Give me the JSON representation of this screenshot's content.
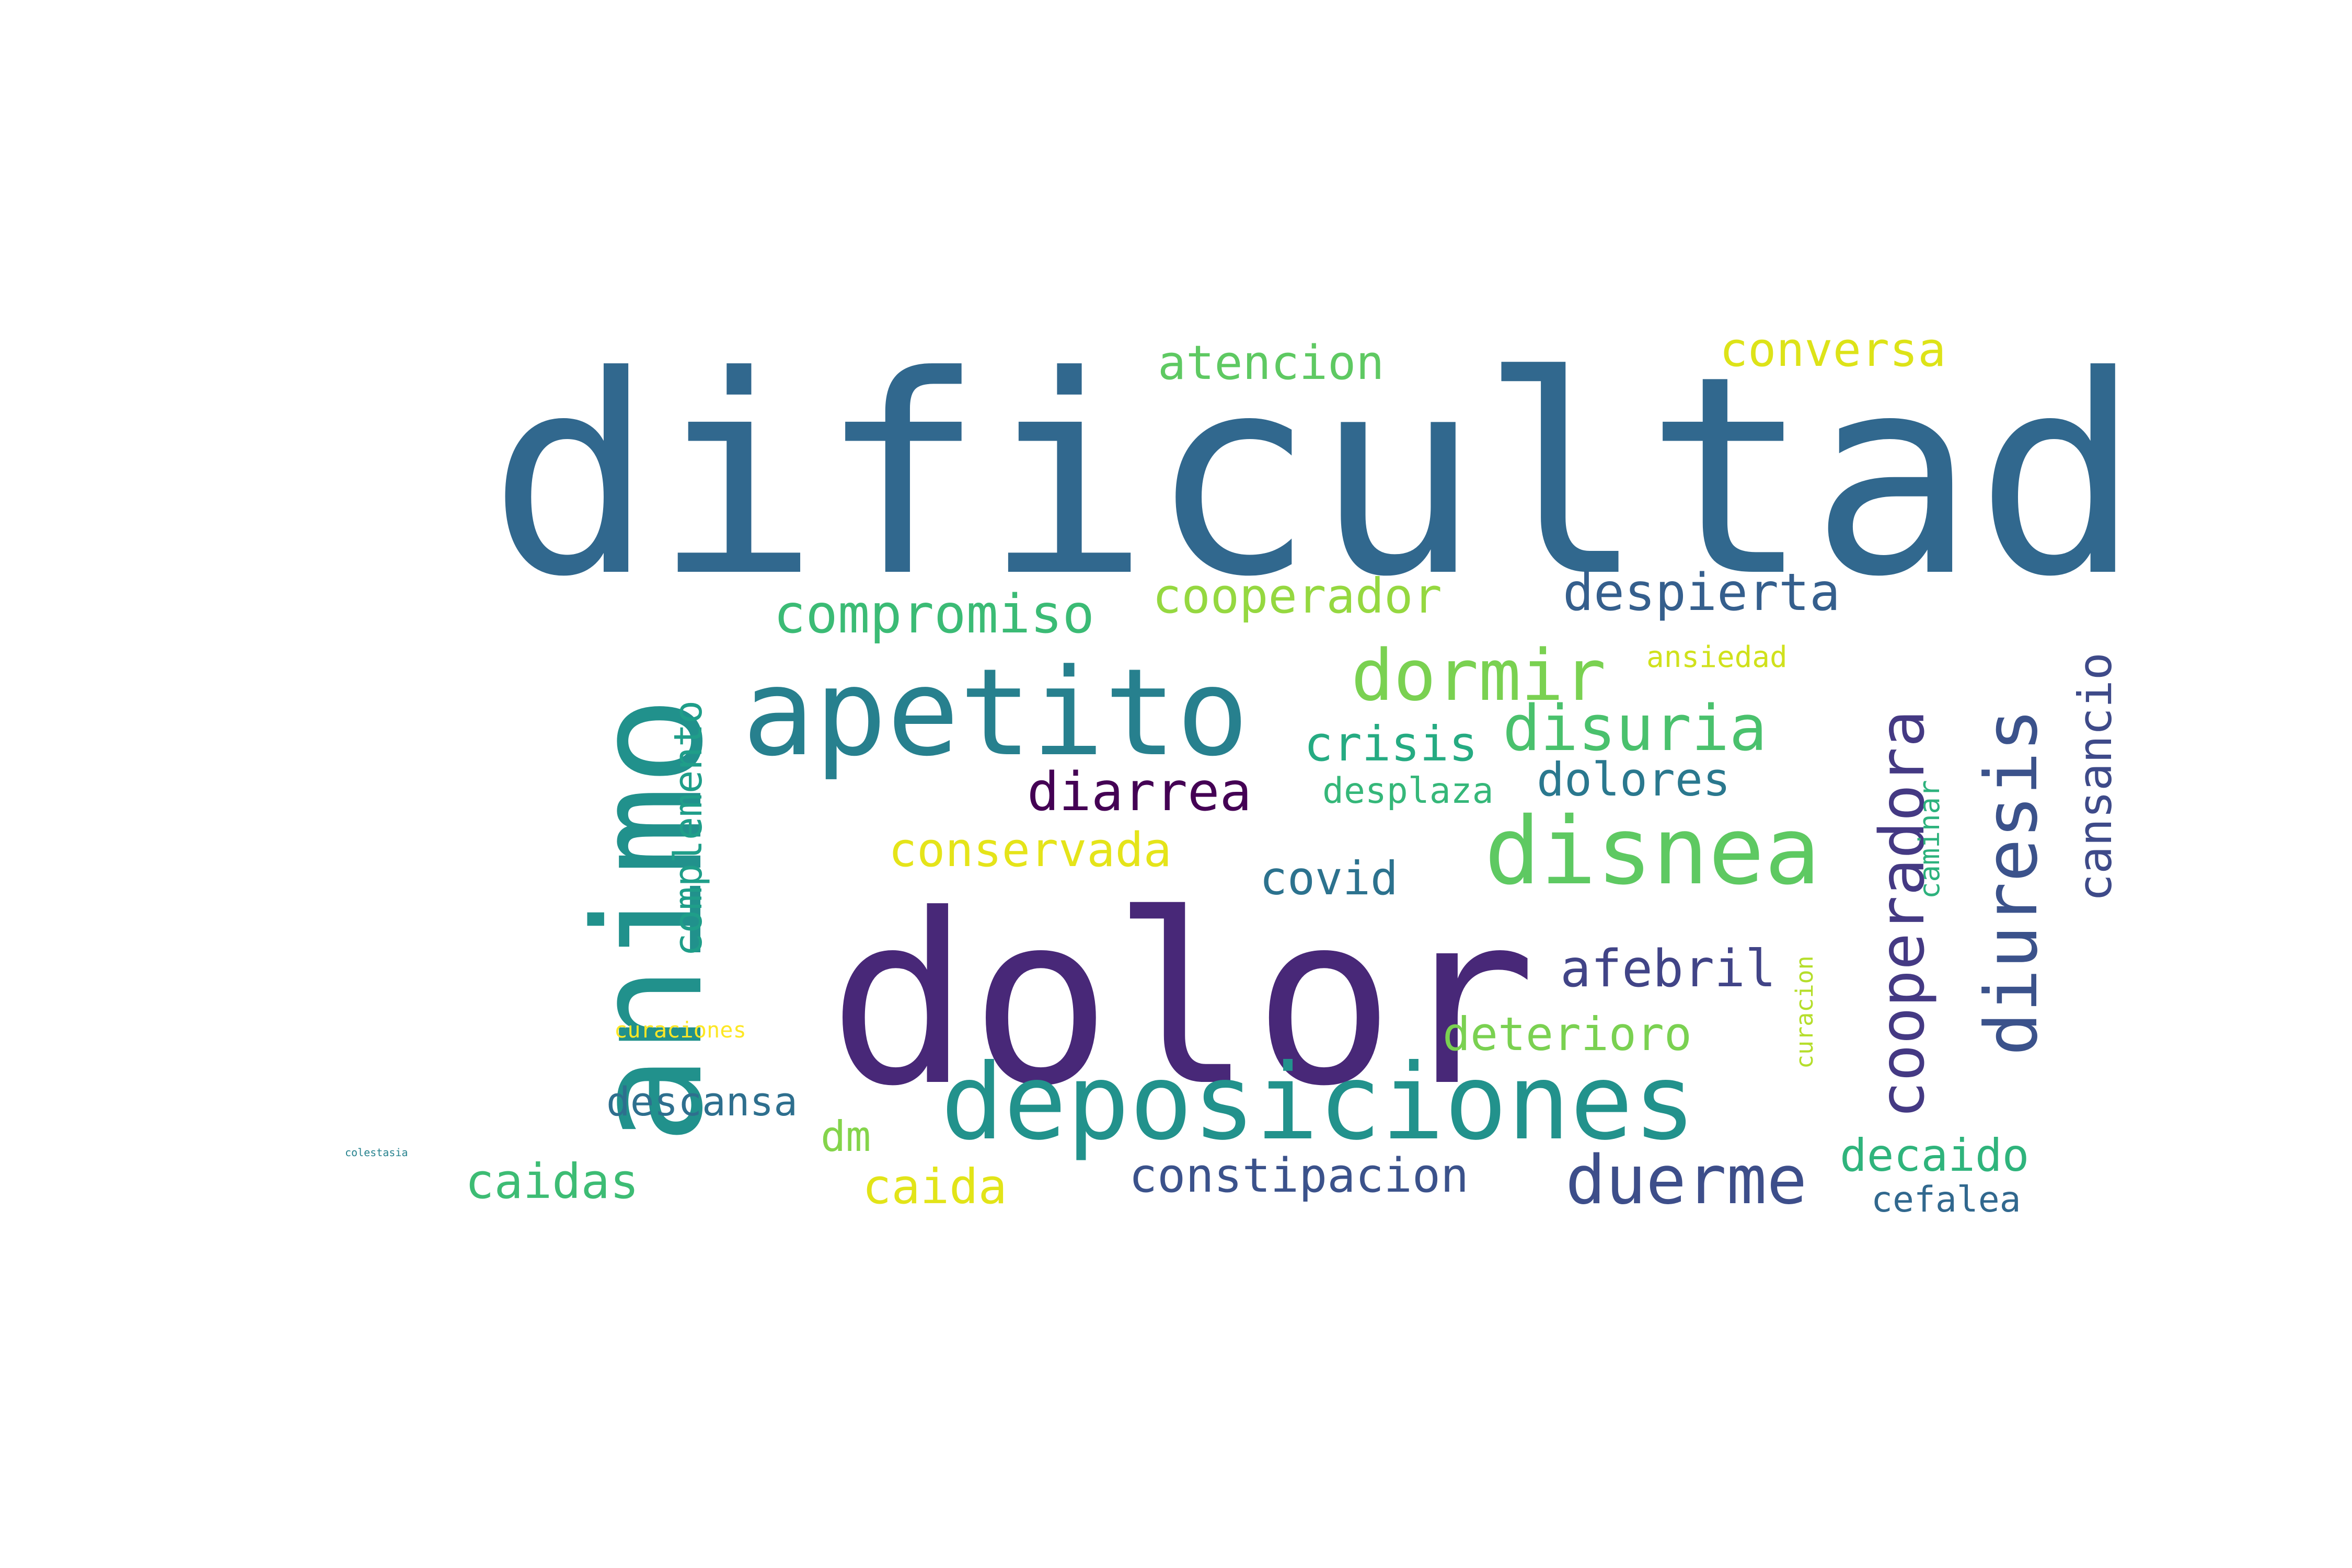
{
  "words": [
    {
      "id": "dificultad",
      "text": "dificultad",
      "color": "#31688e"
    },
    {
      "id": "dolor",
      "text": "dolor",
      "color": "#482878"
    },
    {
      "id": "animo",
      "text": "animo",
      "color": "#21918c"
    },
    {
      "id": "apetito",
      "text": "apetito",
      "color": "#27808e"
    },
    {
      "id": "deposiciones",
      "text": "deposiciones",
      "color": "#22928c"
    },
    {
      "id": "disnea",
      "text": "disnea",
      "color": "#5ec962"
    },
    {
      "id": "atencion",
      "text": "atencion",
      "color": "#5ec962"
    },
    {
      "id": "conversa",
      "text": "conversa",
      "color": "#dde318"
    },
    {
      "id": "compromiso",
      "text": "compromiso",
      "color": "#3bbb75"
    },
    {
      "id": "cooperador",
      "text": "cooperador",
      "color": "#95d840"
    },
    {
      "id": "despierta",
      "text": "despierta",
      "color": "#355f8d"
    },
    {
      "id": "dormir",
      "text": "dormir",
      "color": "#7ad151"
    },
    {
      "id": "ansiedad",
      "text": "ansiedad",
      "color": "#d0e11c"
    },
    {
      "id": "cooperadora",
      "text": "cooperadora",
      "color": "#443983"
    },
    {
      "id": "diuresis",
      "text": "diuresis",
      "color": "#3b528b"
    },
    {
      "id": "cansancio",
      "text": "cansancio",
      "color": "#3e4a89"
    },
    {
      "id": "complemento",
      "text": "complemento",
      "color": "#1f9e89"
    },
    {
      "id": "crisis",
      "text": "crisis",
      "color": "#25ab82"
    },
    {
      "id": "disuria",
      "text": "disuria",
      "color": "#4ac16d"
    },
    {
      "id": "diarrea",
      "text": "diarrea",
      "color": "#440154"
    },
    {
      "id": "desplaza",
      "text": "desplaza",
      "color": "#35b779"
    },
    {
      "id": "dolores",
      "text": "dolores",
      "color": "#2a788e"
    },
    {
      "id": "caminar",
      "text": "caminar",
      "color": "#2db27d"
    },
    {
      "id": "conservada",
      "text": "conservada",
      "color": "#e5e419"
    },
    {
      "id": "covid",
      "text": "covid",
      "color": "#2c728e"
    },
    {
      "id": "afebril",
      "text": "afebril",
      "color": "#414487"
    },
    {
      "id": "curacion",
      "text": "curacion",
      "color": "#b5de2b"
    },
    {
      "id": "deterioro",
      "text": "deterioro",
      "color": "#7ad151"
    },
    {
      "id": "curaciones",
      "text": "curaciones",
      "color": "#fde725"
    },
    {
      "id": "descansa",
      "text": "descansa",
      "color": "#2e6f8e"
    },
    {
      "id": "colestasia",
      "text": "colestasia",
      "color": "#26828e"
    },
    {
      "id": "caidas",
      "text": "caidas",
      "color": "#3dbc74"
    },
    {
      "id": "dm",
      "text": "dm",
      "color": "#84d44b"
    },
    {
      "id": "caida",
      "text": "caida",
      "color": "#e2e418"
    },
    {
      "id": "constipacion",
      "text": "constipacion",
      "color": "#3b528b"
    },
    {
      "id": "duerme",
      "text": "duerme",
      "color": "#3d4e8a"
    },
    {
      "id": "decaido",
      "text": "decaido",
      "color": "#2fb47c"
    },
    {
      "id": "cefalea",
      "text": "cefalea",
      "color": "#31688e"
    }
  ]
}
